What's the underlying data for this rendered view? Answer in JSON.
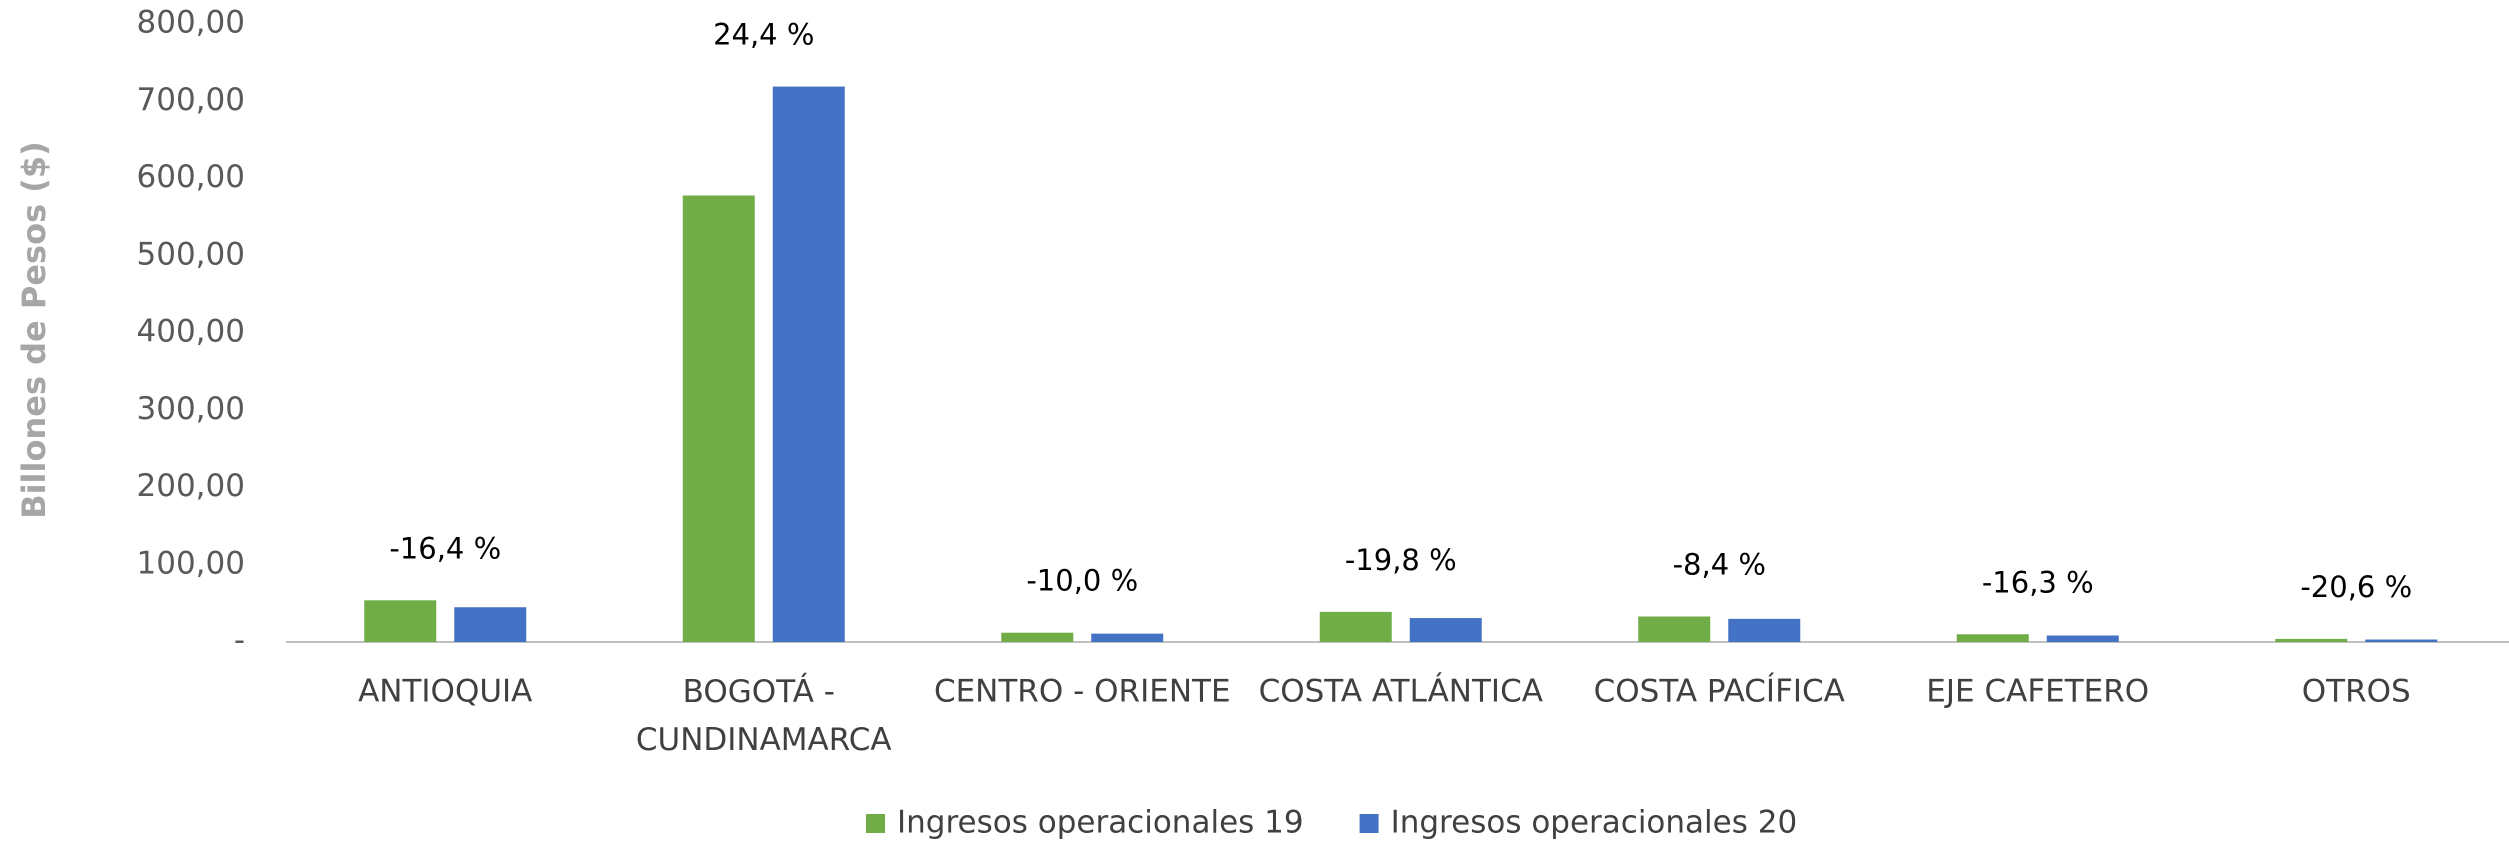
{
  "chart_data": {
    "type": "bar",
    "y_label": "Billones de Pesos ($)",
    "categories": [
      "ANTIOQUIA",
      "BOGOTÁ - CUNDINAMARCA",
      "CENTRO - ORIENTE",
      "COSTA ATLÁNTICA",
      "COSTA PACÍFICA",
      "EJE CAFETERO",
      "OTROS"
    ],
    "series": [
      {
        "name": "Ingresos operacionales 19",
        "color": "#70ad47",
        "values": [
          54,
          578,
          12,
          39,
          33,
          10,
          4
        ]
      },
      {
        "name": "Ingresos operacionales 20",
        "color": "#4472c4",
        "values": [
          45,
          719,
          10.8,
          31,
          30,
          8.4,
          3.2
        ]
      }
    ],
    "annotations": [
      "-16,4 %",
      "24,4 %",
      "-10,0 %",
      "-19,8 %",
      "-8,4 %",
      "-16,3 %",
      "-20,6 %"
    ],
    "ylim": [
      0,
      800
    ],
    "yticks": [
      {
        "value": 0,
        "label": "-"
      },
      {
        "value": 100,
        "label": "100,00"
      },
      {
        "value": 200,
        "label": "200,00"
      },
      {
        "value": 300,
        "label": "300,00"
      },
      {
        "value": 400,
        "label": "400,00"
      },
      {
        "value": 500,
        "label": "500,00"
      },
      {
        "value": 600,
        "label": "600,00"
      },
      {
        "value": 700,
        "label": "700,00"
      },
      {
        "value": 800,
        "label": "800,00"
      }
    ],
    "grid": false,
    "legend": "bottom"
  }
}
